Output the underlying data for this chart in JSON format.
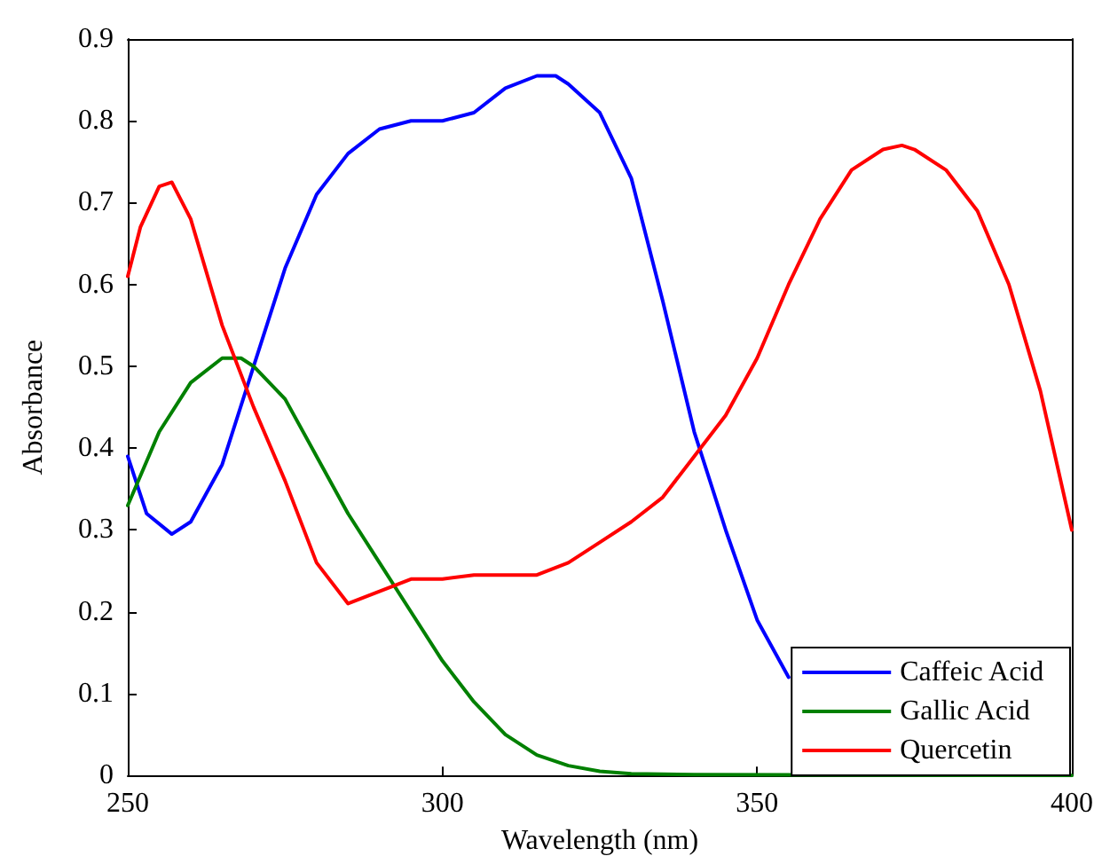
{
  "chart_data": {
    "type": "line",
    "xlabel": "Wavelength (nm)",
    "ylabel": "Absorbance",
    "xlim": [
      250,
      400
    ],
    "xticks": [
      250,
      300,
      350,
      400
    ],
    "ylim": [
      0,
      0.9
    ],
    "yticks": [
      0,
      0.1,
      0.2,
      0.3,
      0.4,
      0.5,
      0.6,
      0.7,
      0.8,
      0.9
    ],
    "grid": false,
    "legend": "bottom right",
    "marker": "none",
    "line_style": "solid",
    "series": [
      {
        "name": "Caffeic Acid",
        "color": "#0000ff",
        "x": [
          250,
          253,
          257,
          260,
          265,
          270,
          275,
          280,
          285,
          290,
          295,
          300,
          305,
          310,
          315,
          318,
          320,
          325,
          330,
          335,
          340,
          345,
          350,
          355
        ],
        "values": [
          0.39,
          0.32,
          0.295,
          0.31,
          0.38,
          0.5,
          0.62,
          0.71,
          0.76,
          0.79,
          0.8,
          0.8,
          0.81,
          0.84,
          0.855,
          0.855,
          0.845,
          0.81,
          0.73,
          0.58,
          0.42,
          0.3,
          0.19,
          0.12
        ]
      },
      {
        "name": "Gallic Acid",
        "color": "#008000",
        "x": [
          250,
          255,
          260,
          265,
          268,
          270,
          275,
          280,
          285,
          290,
          295,
          300,
          305,
          310,
          315,
          320,
          325,
          330,
          340,
          400
        ],
        "values": [
          0.33,
          0.42,
          0.48,
          0.51,
          0.51,
          0.5,
          0.46,
          0.39,
          0.32,
          0.26,
          0.2,
          0.14,
          0.09,
          0.05,
          0.025,
          0.012,
          0.005,
          0.002,
          0.001,
          0
        ]
      },
      {
        "name": "Quercetin",
        "color": "#ff0000",
        "x": [
          250,
          252,
          255,
          257,
          260,
          265,
          270,
          275,
          280,
          285,
          290,
          295,
          300,
          305,
          310,
          315,
          320,
          325,
          330,
          335,
          340,
          345,
          350,
          355,
          360,
          365,
          370,
          373,
          375,
          380,
          385,
          390,
          395,
          400
        ],
        "values": [
          0.61,
          0.67,
          0.72,
          0.725,
          0.68,
          0.55,
          0.45,
          0.36,
          0.26,
          0.21,
          0.225,
          0.24,
          0.24,
          0.245,
          0.245,
          0.245,
          0.26,
          0.285,
          0.31,
          0.34,
          0.39,
          0.44,
          0.51,
          0.6,
          0.68,
          0.74,
          0.765,
          0.77,
          0.765,
          0.74,
          0.69,
          0.6,
          0.47,
          0.3
        ]
      }
    ]
  }
}
